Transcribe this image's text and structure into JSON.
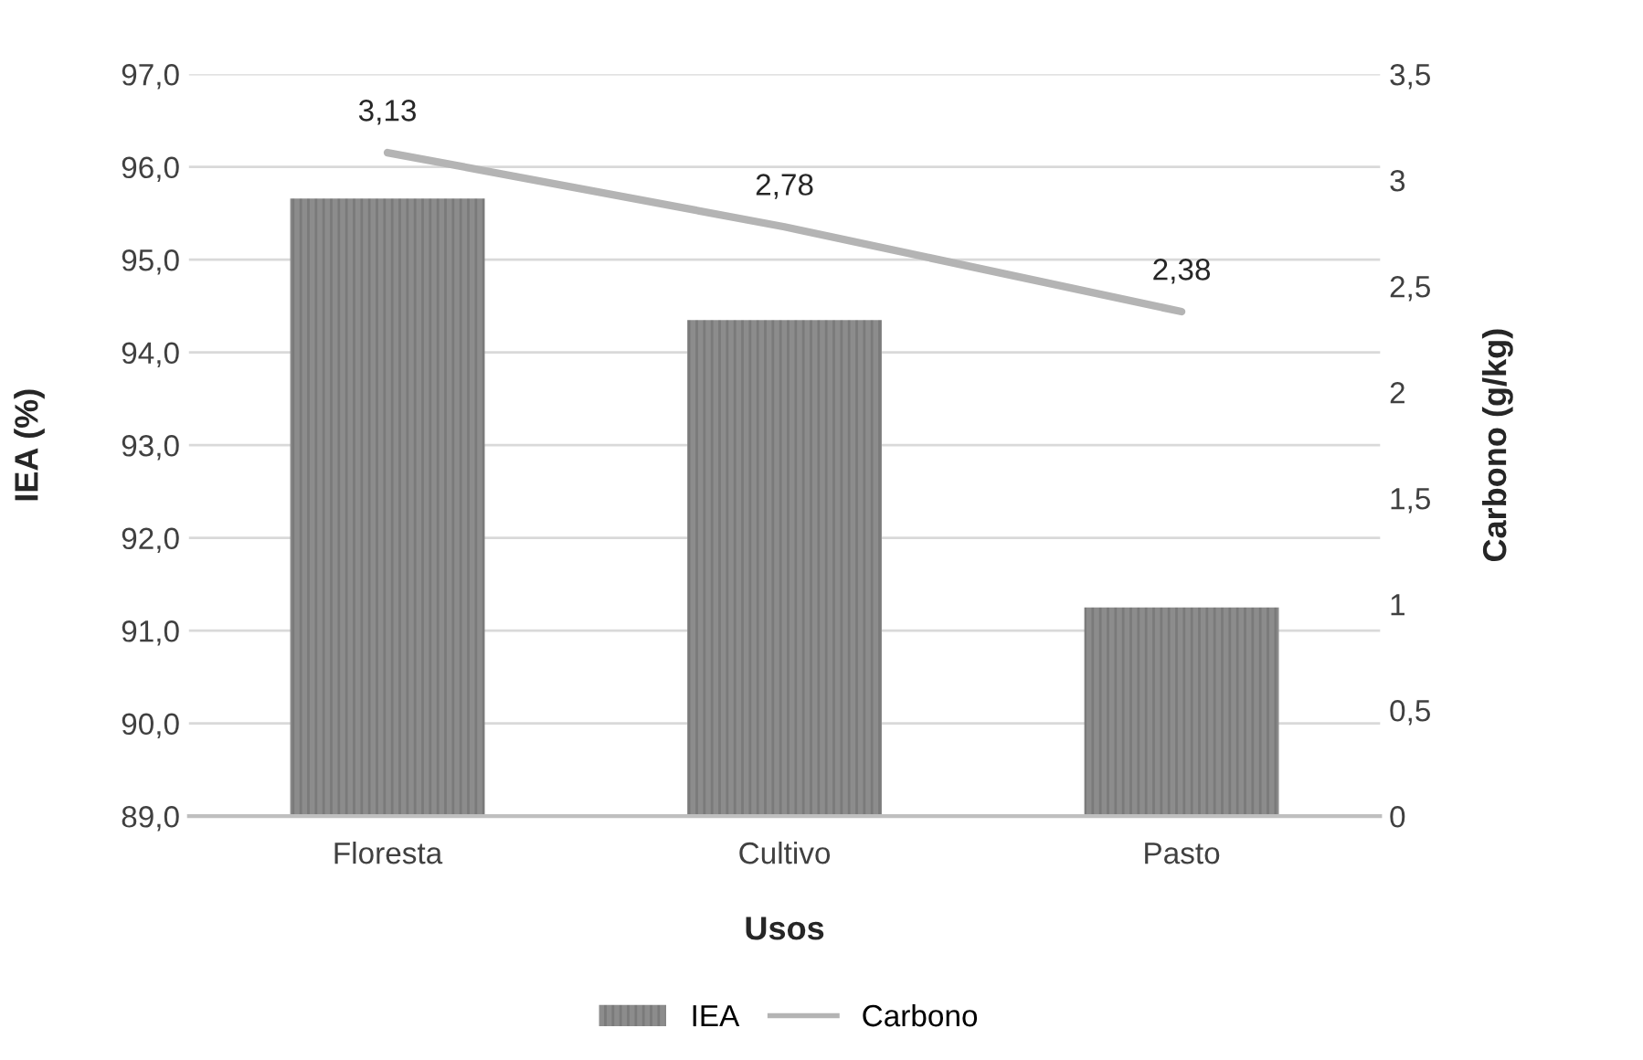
{
  "chart_data": {
    "type": "bar",
    "xlabel": "Usos",
    "ylabel": "IEA (%)",
    "y2label": "Carbono (g/kg)",
    "categories": [
      "Floresta",
      "Cultivo",
      "Pasto"
    ],
    "series": [
      {
        "name": "IEA",
        "color": "#8c8c8c",
        "values": [
          95.66,
          94.35,
          91.25
        ]
      },
      {
        "name": "Carbono",
        "type": "line",
        "axis": "y2",
        "color": "#b4b4b4",
        "values": [
          3.13,
          2.78,
          2.38
        ],
        "value_labels": [
          "3,13",
          "2,78",
          "2,38"
        ]
      }
    ],
    "ylim": [
      89,
      97
    ],
    "yticks": [
      {
        "value": 89,
        "label": "89,0"
      },
      {
        "value": 90,
        "label": "90,0"
      },
      {
        "value": 91,
        "label": "91,0"
      },
      {
        "value": 92,
        "label": "92,0"
      },
      {
        "value": 93,
        "label": "93,0"
      },
      {
        "value": 94,
        "label": "94,0"
      },
      {
        "value": 95,
        "label": "95,0"
      },
      {
        "value": 96,
        "label": "96,0"
      },
      {
        "value": 97,
        "label": "97,0"
      }
    ],
    "y2lim": [
      0,
      3.5
    ],
    "y2ticks": [
      0,
      {
        "value": 0.5,
        "label": "0,5"
      },
      1,
      {
        "value": 1.5,
        "label": "1,5"
      },
      2,
      {
        "value": 2.5,
        "label": "2,5"
      },
      3,
      {
        "value": 3.5,
        "label": "3,5"
      }
    ],
    "grid": "y",
    "legend": "bottom",
    "marker": "none",
    "line_style": "solid"
  }
}
